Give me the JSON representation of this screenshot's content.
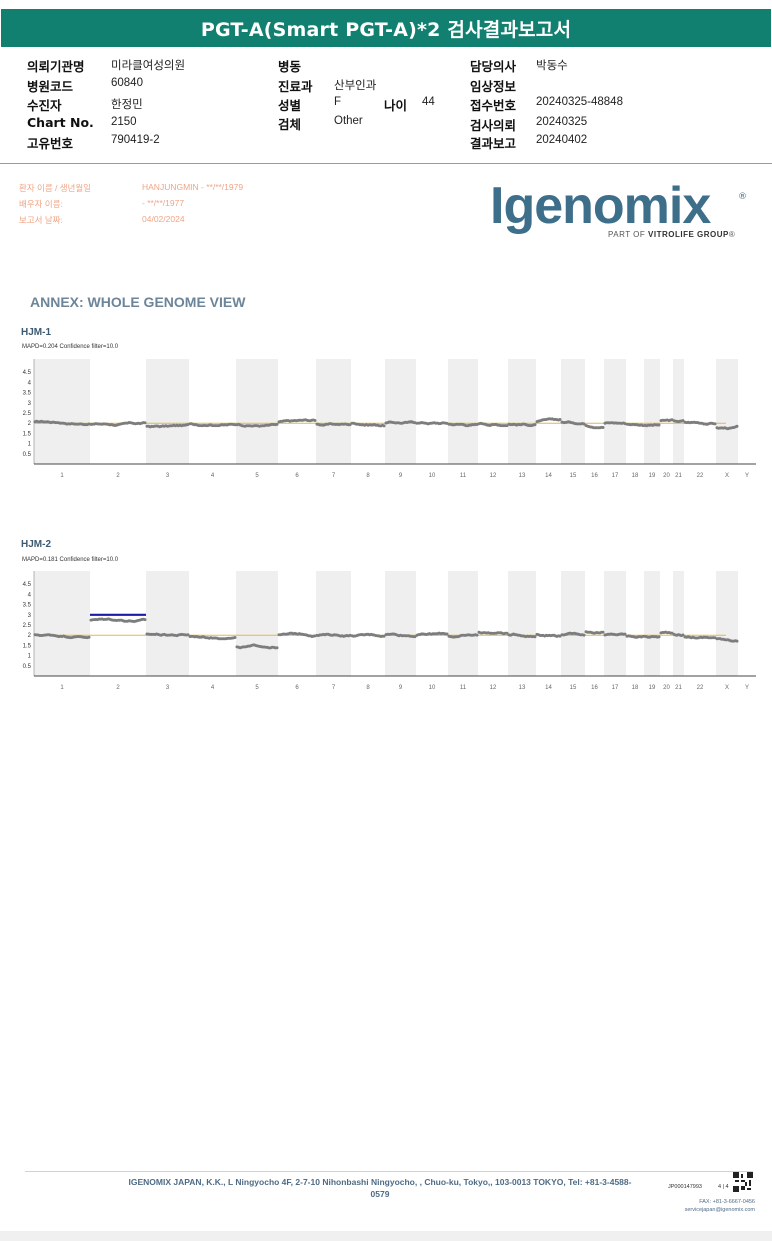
{
  "title": "PGT-A(Smart PGT-A)*2 검사결과보고서",
  "info": {
    "institution_label": "의뢰기관명",
    "institution": "미라클여성의원",
    "hospital_code_label": "병원코드",
    "hospital_code": "60840",
    "patient_label": "수진자",
    "patient": "한정민",
    "chart_label": "Chart No.",
    "chart": "2150",
    "unique_label": "고유번호",
    "unique": "790419-2",
    "ward_label": "병동",
    "ward": "",
    "dept_label": "진료과",
    "dept": "산부인과",
    "sex_label": "성별",
    "sex": "F",
    "age_label": "나이",
    "age": "44",
    "specimen_label": "검체",
    "specimen": "Other",
    "doctor_label": "담당의사",
    "doctor": "박동수",
    "clinical_label": "임상정보",
    "clinical": "",
    "reception_label": "접수번호",
    "reception": "20240325-48848",
    "request_label": "검사의뢰",
    "request": "20240325",
    "report_label": "결과보고",
    "report": "20240402"
  },
  "patient_block": {
    "name_label": "환자 이름 / 생년월일",
    "name_value": "HANJUNGMIN - **/**/1979",
    "partner_label": "배우자 이름:",
    "partner_value": "- **/**/1977",
    "date_label": "보고서 날짜:",
    "date_value": "04/02/2024"
  },
  "logo": {
    "text": "Igenomix",
    "reg": "®",
    "sub_prefix": "PART OF ",
    "sub_bold": "VITROLIFE GROUP",
    "sub_suffix": "®"
  },
  "annex_title": "ANNEX: WHOLE GENOME VIEW",
  "samples": [
    {
      "name": "HJM-1",
      "mapd": "MAPD=0.204 Confidence filter=10.0"
    },
    {
      "name": "HJM-2",
      "mapd": "MAPD=0.181 Confidence filter=10.0"
    }
  ],
  "colors": {
    "header": "#128071",
    "shade": "#efefef",
    "baseline": "#e0b84c",
    "dots": "#7d7d7d",
    "gain": "#1a1aa6"
  },
  "chart_data": [
    {
      "type": "scatter",
      "title": "HJM-1",
      "ylim": [
        0,
        5
      ],
      "yticks": [
        "0.5",
        "1",
        "1.5",
        "2",
        "2.5",
        "3",
        "3.5",
        "4",
        "4.5"
      ],
      "categories": [
        "1",
        "2",
        "3",
        "4",
        "5",
        "6",
        "7",
        "8",
        "9",
        "10",
        "11",
        "12",
        "13",
        "14",
        "15",
        "16",
        "17",
        "18",
        "19",
        "20",
        "21",
        "22",
        "X",
        "Y"
      ],
      "segments": [
        2.05,
        1.95,
        1.85,
        2.0,
        1.95,
        2.05,
        1.95,
        1.98,
        2.0,
        2.02,
        1.95,
        2.0,
        1.95,
        2.1,
        2.05,
        1.9,
        2.0,
        1.95,
        1.9,
        2.1,
        2.1,
        2.05,
        1.75,
        0
      ],
      "gains": []
    },
    {
      "type": "scatter",
      "title": "HJM-2",
      "ylim": [
        0,
        5
      ],
      "yticks": [
        "0.5",
        "1",
        "1.5",
        "2",
        "2.5",
        "3",
        "3.5",
        "4",
        "4.5"
      ],
      "categories": [
        "1",
        "2",
        "3",
        "4",
        "5",
        "6",
        "7",
        "8",
        "9",
        "10",
        "11",
        "12",
        "13",
        "14",
        "15",
        "16",
        "17",
        "18",
        "19",
        "20",
        "21",
        "22",
        "X",
        "Y"
      ],
      "segments": [
        2.0,
        2.75,
        2.05,
        1.95,
        1.4,
        2.0,
        2.0,
        2.0,
        2.05,
        2.0,
        1.95,
        2.15,
        2.0,
        2.05,
        2.05,
        2.15,
        2.0,
        1.95,
        1.95,
        2.1,
        2.05,
        1.9,
        1.8,
        0
      ],
      "gains": [
        {
          "chromosome": "2",
          "value": 3.0
        }
      ]
    }
  ],
  "footer": {
    "address": "IGENOMIX JAPAN, K.K., L Ningyocho 4F, 2-7-10 Nihonbashi Ningyocho, , Chuo-ku, Tokyo,, 103-0013 TOKYO, Tel: +81-3-4588-0579",
    "doc_id": "JP000147993",
    "page": "4 | 4",
    "fax": "FAX: +81-3-6667-0456",
    "email": "servicejapan@igenomix.com"
  }
}
